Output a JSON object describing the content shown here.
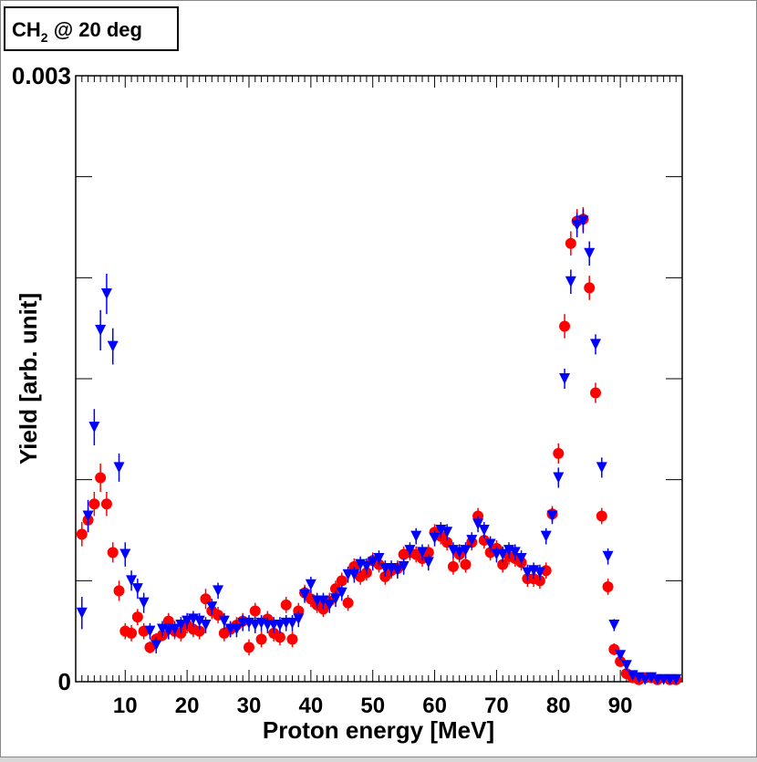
{
  "colors": {
    "seriesA": "#ff0000",
    "seriesB": "#0000ff",
    "frame": "#000000"
  },
  "chart_data": {
    "type": "scatter",
    "title": "CH₂ @ 20 deg",
    "title_main": "CH",
    "title_sub": "2",
    "title_rest": " @ 20 deg",
    "xlabel": "Proton energy [MeV]",
    "ylabel": "Yield [arb. unit]",
    "xlim": [
      2,
      100
    ],
    "ylim": [
      0,
      0.003
    ],
    "x_ticks": [
      "10",
      "20",
      "30",
      "40",
      "50",
      "60",
      "70",
      "80",
      "90"
    ],
    "y_ticks": [
      "0",
      "0.003"
    ],
    "legend": "none",
    "series": [
      {
        "name": "red circles",
        "marker": "circle",
        "color": "#ff0000",
        "points": [
          [
            3,
            0.00073,
            6e-05
          ],
          [
            4,
            0.0008,
            6e-05
          ],
          [
            5,
            0.00088,
            6e-05
          ],
          [
            6,
            0.00101,
            7e-05
          ],
          [
            7,
            0.00088,
            6e-05
          ],
          [
            8,
            0.00064,
            5e-05
          ],
          [
            9,
            0.00045,
            5e-05
          ],
          [
            10,
            0.00025,
            4e-05
          ],
          [
            11,
            0.00024,
            4e-05
          ],
          [
            12,
            0.00032,
            4e-05
          ],
          [
            13,
            0.00025,
            4e-05
          ],
          [
            14,
            0.00017,
            3e-05
          ],
          [
            15,
            0.00021,
            3e-05
          ],
          [
            16,
            0.00023,
            3e-05
          ],
          [
            17,
            0.0003,
            4e-05
          ],
          [
            18,
            0.00025,
            4e-05
          ],
          [
            19,
            0.00024,
            4e-05
          ],
          [
            20,
            0.00028,
            4e-05
          ],
          [
            21,
            0.00026,
            4e-05
          ],
          [
            22,
            0.00025,
            4e-05
          ],
          [
            23,
            0.00041,
            5e-05
          ],
          [
            24,
            0.00035,
            4e-05
          ],
          [
            25,
            0.00033,
            4e-05
          ],
          [
            26,
            0.00024,
            4e-05
          ],
          [
            27,
            0.00026,
            4e-05
          ],
          [
            28,
            0.00028,
            4e-05
          ],
          [
            29,
            0.0003,
            4e-05
          ],
          [
            30,
            0.00017,
            4e-05
          ],
          [
            31,
            0.00035,
            4e-05
          ],
          [
            32,
            0.00021,
            4e-05
          ],
          [
            33,
            0.00031,
            4e-05
          ],
          [
            34,
            0.00024,
            4e-05
          ],
          [
            35,
            0.00022,
            4e-05
          ],
          [
            36,
            0.00038,
            4e-05
          ],
          [
            37,
            0.00021,
            4e-05
          ],
          [
            38,
            0.00035,
            4e-05
          ],
          [
            39,
            0.00044,
            4e-05
          ],
          [
            40,
            0.00041,
            4e-05
          ],
          [
            41,
            0.00038,
            4e-05
          ],
          [
            42,
            0.00036,
            4e-05
          ],
          [
            43,
            0.0004,
            4e-05
          ],
          [
            44,
            0.00046,
            4e-05
          ],
          [
            45,
            0.0005,
            4e-05
          ],
          [
            46,
            0.00039,
            4e-05
          ],
          [
            47,
            0.00057,
            4e-05
          ],
          [
            48,
            0.00052,
            4e-05
          ],
          [
            49,
            0.00054,
            4e-05
          ],
          [
            50,
            0.0006,
            4e-05
          ],
          [
            51,
            0.00058,
            4e-05
          ],
          [
            52,
            0.00052,
            4e-05
          ],
          [
            53,
            0.00055,
            4e-05
          ],
          [
            54,
            0.00056,
            4e-05
          ],
          [
            55,
            0.00063,
            4e-05
          ],
          [
            56,
            0.00064,
            4e-05
          ],
          [
            57,
            0.00063,
            4e-05
          ],
          [
            58,
            0.00061,
            4e-05
          ],
          [
            59,
            0.00064,
            4e-05
          ],
          [
            60,
            0.00074,
            4e-05
          ],
          [
            61,
            0.00072,
            4e-05
          ],
          [
            62,
            0.00069,
            4e-05
          ],
          [
            63,
            0.00057,
            4e-05
          ],
          [
            64,
            0.00063,
            4e-05
          ],
          [
            65,
            0.00058,
            4e-05
          ],
          [
            66,
            0.00069,
            4e-05
          ],
          [
            67,
            0.00082,
            4e-05
          ],
          [
            68,
            0.0007,
            4e-05
          ],
          [
            69,
            0.00064,
            4e-05
          ],
          [
            70,
            0.00066,
            4e-05
          ],
          [
            71,
            0.00058,
            4e-05
          ],
          [
            72,
            0.00062,
            4e-05
          ],
          [
            73,
            0.00061,
            4e-05
          ],
          [
            74,
            0.00059,
            4e-05
          ],
          [
            75,
            0.00051,
            4e-05
          ],
          [
            76,
            0.00051,
            4e-05
          ],
          [
            77,
            0.0005,
            4e-05
          ],
          [
            78,
            0.00055,
            4e-05
          ],
          [
            79,
            0.00083,
            4e-05
          ],
          [
            80,
            0.00113,
            5e-05
          ],
          [
            81,
            0.00176,
            6e-05
          ],
          [
            82,
            0.00217,
            6e-05
          ],
          [
            83,
            0.00228,
            6e-05
          ],
          [
            84,
            0.00229,
            6e-05
          ],
          [
            85,
            0.00195,
            6e-05
          ],
          [
            86,
            0.00143,
            5e-05
          ],
          [
            87,
            0.00082,
            4e-05
          ],
          [
            88,
            0.00047,
            4e-05
          ],
          [
            89,
            0.00016,
            3e-05
          ],
          [
            90,
            0.0001,
            2e-05
          ],
          [
            91,
            4e-05,
            2e-05
          ],
          [
            92,
            2e-05,
            1e-05
          ],
          [
            93,
            1e-05,
            1e-05
          ],
          [
            94,
            2e-05,
            1e-05
          ],
          [
            95,
            2e-05,
            1e-05
          ],
          [
            96,
            1e-05,
            1e-05
          ],
          [
            98,
            1e-05,
            1e-05
          ],
          [
            99,
            1e-05,
            1e-05
          ]
        ]
      },
      {
        "name": "blue triangles",
        "marker": "triangle-down",
        "color": "#0000ff",
        "points": [
          [
            3,
            0.00034,
            8e-05
          ],
          [
            4,
            0.00082,
            8e-05
          ],
          [
            5,
            0.00126,
            9e-05
          ],
          [
            6,
            0.00174,
            0.0001
          ],
          [
            7,
            0.00192,
            0.0001
          ],
          [
            8,
            0.00166,
            9e-05
          ],
          [
            9,
            0.00106,
            7e-05
          ],
          [
            10,
            0.00063,
            6e-05
          ],
          [
            11,
            0.0005,
            5e-05
          ],
          [
            12,
            0.00046,
            5e-05
          ],
          [
            13,
            0.00039,
            5e-05
          ],
          [
            14,
            0.00025,
            4e-05
          ],
          [
            15,
            0.00018,
            4e-05
          ],
          [
            16,
            0.00026,
            4e-05
          ],
          [
            17,
            0.00025,
            4e-05
          ],
          [
            18,
            0.00026,
            4e-05
          ],
          [
            19,
            0.00028,
            4e-05
          ],
          [
            20,
            0.0003,
            4e-05
          ],
          [
            21,
            0.00031,
            4e-05
          ],
          [
            22,
            0.0003,
            4e-05
          ],
          [
            23,
            0.00028,
            4e-05
          ],
          [
            24,
            0.00037,
            4e-05
          ],
          [
            25,
            0.00045,
            4e-05
          ],
          [
            26,
            0.0003,
            4e-05
          ],
          [
            27,
            0.00026,
            4e-05
          ],
          [
            28,
            0.00026,
            4e-05
          ],
          [
            29,
            0.00029,
            4e-05
          ],
          [
            30,
            0.00029,
            4e-05
          ],
          [
            31,
            0.00028,
            4e-05
          ],
          [
            32,
            0.00029,
            4e-05
          ],
          [
            33,
            0.00028,
            4e-05
          ],
          [
            34,
            0.00028,
            4e-05
          ],
          [
            35,
            0.00028,
            4e-05
          ],
          [
            36,
            0.00029,
            4e-05
          ],
          [
            37,
            0.00029,
            4e-05
          ],
          [
            38,
            0.00031,
            4e-05
          ],
          [
            39,
            0.00043,
            4e-05
          ],
          [
            40,
            0.00048,
            4e-05
          ],
          [
            41,
            0.0004,
            4e-05
          ],
          [
            42,
            0.0004,
            4e-05
          ],
          [
            43,
            0.00038,
            4e-05
          ],
          [
            44,
            0.00041,
            4e-05
          ],
          [
            45,
            0.00044,
            4e-05
          ],
          [
            46,
            0.00053,
            4e-05
          ],
          [
            47,
            0.00053,
            4e-05
          ],
          [
            48,
            0.00058,
            4e-05
          ],
          [
            49,
            0.00057,
            4e-05
          ],
          [
            50,
            0.00059,
            4e-05
          ],
          [
            51,
            0.00061,
            4e-05
          ],
          [
            52,
            0.00056,
            4e-05
          ],
          [
            53,
            0.00056,
            4e-05
          ],
          [
            54,
            0.00055,
            4e-05
          ],
          [
            55,
            0.00057,
            4e-05
          ],
          [
            56,
            0.00065,
            4e-05
          ],
          [
            57,
            0.00072,
            4e-05
          ],
          [
            58,
            0.00064,
            4e-05
          ],
          [
            59,
            0.00059,
            4e-05
          ],
          [
            60,
            0.00071,
            4e-05
          ],
          [
            61,
            0.00075,
            4e-05
          ],
          [
            62,
            0.00074,
            4e-05
          ],
          [
            63,
            0.00065,
            4e-05
          ],
          [
            64,
            0.00064,
            4e-05
          ],
          [
            65,
            0.00065,
            4e-05
          ],
          [
            66,
            0.0007,
            4e-05
          ],
          [
            67,
            0.00078,
            4e-05
          ],
          [
            68,
            0.00075,
            4e-05
          ],
          [
            69,
            0.00068,
            4e-05
          ],
          [
            70,
            0.00063,
            4e-05
          ],
          [
            71,
            0.00063,
            4e-05
          ],
          [
            72,
            0.00065,
            4e-05
          ],
          [
            73,
            0.00064,
            4e-05
          ],
          [
            74,
            0.00061,
            4e-05
          ],
          [
            75,
            0.00054,
            4e-05
          ],
          [
            76,
            0.00055,
            4e-05
          ],
          [
            77,
            0.00054,
            4e-05
          ],
          [
            78,
            0.00072,
            4e-05
          ],
          [
            79,
            0.00082,
            4e-05
          ],
          [
            80,
            0.00101,
            5e-05
          ],
          [
            81,
            0.0015,
            5e-05
          ],
          [
            82,
            0.00198,
            6e-05
          ],
          [
            83,
            0.00226,
            6e-05
          ],
          [
            84,
            0.00228,
            6e-05
          ],
          [
            85,
            0.00212,
            6e-05
          ],
          [
            86,
            0.00167,
            5e-05
          ],
          [
            87,
            0.00106,
            5e-05
          ],
          [
            88,
            0.00062,
            4e-05
          ],
          [
            89,
            0.00028,
            3e-05
          ],
          [
            90,
            0.00013,
            2e-05
          ],
          [
            91,
            8e-05,
            2e-05
          ],
          [
            92,
            3e-05,
            1e-05
          ],
          [
            93,
            2e-05,
            1e-05
          ],
          [
            94,
            1e-05,
            1e-05
          ],
          [
            95,
            2e-05,
            1e-05
          ],
          [
            96,
            1e-05,
            1e-05
          ],
          [
            97,
            1e-05,
            1e-05
          ],
          [
            98,
            1e-05,
            1e-05
          ],
          [
            99,
            1e-05,
            1e-05
          ]
        ]
      }
    ]
  }
}
